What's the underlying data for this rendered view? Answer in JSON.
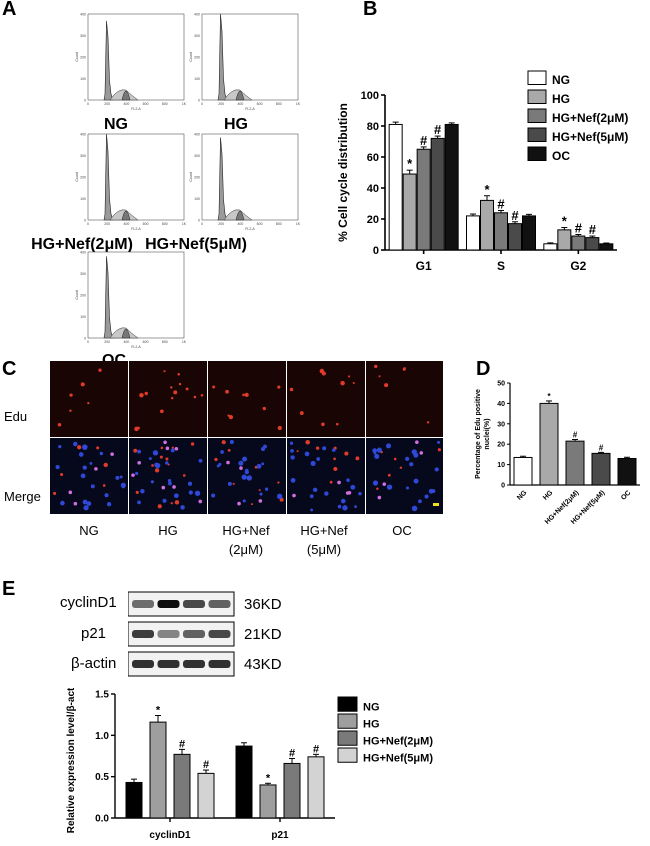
{
  "panels": {
    "A": {
      "letter": "A",
      "histograms": [
        {
          "label": "NG",
          "axis_y": "Count",
          "axis_x": "FL2-A"
        },
        {
          "label": "HG",
          "axis_y": "Count",
          "axis_x": "FL2-A"
        },
        {
          "label": "HG+Nef(2μM)",
          "axis_y": "Count",
          "axis_x": "FL2-A"
        },
        {
          "label": "HG+Nef(5μM)",
          "axis_y": "Count",
          "axis_x": "FL2-A"
        },
        {
          "label": "OC",
          "axis_y": "Count",
          "axis_x": "FL2-A"
        }
      ],
      "x_ticks": [
        "0",
        "200",
        "400",
        "600",
        "800",
        "1K"
      ],
      "y_ticks": [
        "0",
        "100",
        "200",
        "300",
        "400"
      ]
    },
    "C": {
      "letter": "C",
      "row_labels": [
        "Edu",
        "Merge"
      ],
      "column_labels": [
        {
          "line1": "NG",
          "line2": ""
        },
        {
          "line1": "HG",
          "line2": ""
        },
        {
          "line1": "HG+Nef",
          "line2": "(2μM)"
        },
        {
          "line1": "HG+Nef",
          "line2": "(5μM)"
        },
        {
          "line1": "OC",
          "line2": ""
        }
      ]
    },
    "E": {
      "letter": "E",
      "blot_rows": [
        {
          "protein": "cyclinD1",
          "size": "36KD"
        },
        {
          "protein": "p21",
          "size": "21KD"
        },
        {
          "protein": "β-actin",
          "size": "43KD"
        }
      ]
    }
  },
  "chart_data": [
    {
      "id": "B",
      "letter": "B",
      "type": "bar",
      "ylabel": "% Cell cycle distribution",
      "xlabel": "",
      "ylim": [
        0,
        100
      ],
      "yticks": [
        0,
        20,
        40,
        60,
        80,
        100
      ],
      "categories": [
        "G1",
        "S",
        "G2"
      ],
      "series": [
        {
          "name": "NG",
          "color": "#ffffff",
          "values": [
            81,
            22,
            4
          ],
          "errors": [
            1.5,
            1.2,
            0.6
          ],
          "marks": [
            "",
            "",
            ""
          ]
        },
        {
          "name": "HG",
          "color": "#a9a9a9",
          "values": [
            49,
            32,
            13
          ],
          "errors": [
            2.5,
            3.0,
            1.5
          ],
          "marks": [
            "*",
            "*",
            "*"
          ]
        },
        {
          "name": "HG+Nef(2μM)",
          "color": "#7a7a7a",
          "values": [
            65,
            24,
            9
          ],
          "errors": [
            1.5,
            1.5,
            1.0
          ],
          "marks": [
            "#",
            "#",
            "#"
          ]
        },
        {
          "name": "HG+Nef(5μM)",
          "color": "#4a4a4a",
          "values": [
            72,
            17,
            8
          ],
          "errors": [
            1.5,
            1.2,
            1.0
          ],
          "marks": [
            "#",
            "#",
            "#"
          ]
        },
        {
          "name": "OC",
          "color": "#111111",
          "values": [
            81,
            22,
            4
          ],
          "errors": [
            1.0,
            1.0,
            0.5
          ],
          "marks": [
            "",
            "",
            ""
          ]
        }
      ],
      "legend_position": "top-right"
    },
    {
      "id": "D",
      "letter": "D",
      "type": "bar",
      "ylabel": "Percentage of Edu positive nuclei(%)",
      "xlabel": "",
      "ylim": [
        0,
        50
      ],
      "yticks": [
        0,
        10,
        20,
        30,
        40,
        50
      ],
      "categories": [
        "NG",
        "HG",
        "HG+Nef(2μM)",
        "HG+Nef(5μM)",
        "OC"
      ],
      "colors": [
        "#ffffff",
        "#a9a9a9",
        "#7a7a7a",
        "#4a4a4a",
        "#111111"
      ],
      "values": [
        13.5,
        40,
        21.5,
        15.5,
        13
      ],
      "errors": [
        0.6,
        1.2,
        0.8,
        0.5,
        0.6
      ],
      "marks": [
        "",
        "*",
        "#",
        "#",
        ""
      ]
    },
    {
      "id": "E",
      "type": "bar",
      "ylabel": "Relative expression level/β-actin",
      "xlabel": "",
      "ylim": [
        0,
        1.5
      ],
      "yticks": [
        "0.0",
        "0.5",
        "1.0",
        "1.5"
      ],
      "categories": [
        "cyclinD1",
        "p21"
      ],
      "series": [
        {
          "name": "NG",
          "color": "#000000",
          "values": [
            0.43,
            0.87
          ],
          "errors": [
            0.04,
            0.04
          ],
          "marks": [
            "",
            ""
          ]
        },
        {
          "name": "HG",
          "color": "#9e9e9e",
          "values": [
            1.16,
            0.4
          ],
          "errors": [
            0.08,
            0.02
          ],
          "marks": [
            "*",
            "*"
          ]
        },
        {
          "name": "HG+Nef(2μM)",
          "color": "#7a7a7a",
          "values": [
            0.77,
            0.66
          ],
          "errors": [
            0.06,
            0.06
          ],
          "marks": [
            "#",
            "#"
          ]
        },
        {
          "name": "HG+Nef(5μM)",
          "color": "#d3d3d3",
          "values": [
            0.54,
            0.74
          ],
          "errors": [
            0.04,
            0.03
          ],
          "marks": [
            "#",
            "#"
          ]
        }
      ],
      "legend_position": "right"
    }
  ]
}
